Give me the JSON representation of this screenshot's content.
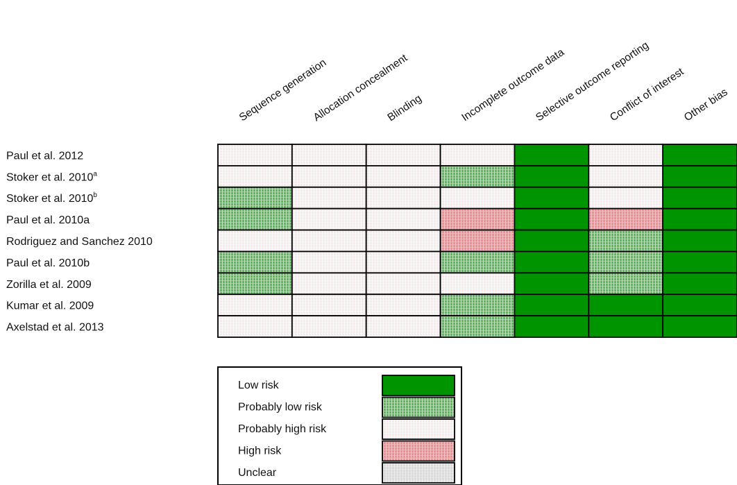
{
  "chart_data": {
    "type": "table",
    "columns": [
      "Sequence generation",
      "Allocation concealment",
      "Blinding",
      "Incomplete outcome data",
      "Selective outcome reporting",
      "Conflict of interest",
      "Other bias"
    ],
    "rows": [
      {
        "study": "Paul et al. 2012",
        "sup": "",
        "ratings": [
          "probably_high",
          "probably_high",
          "probably_high",
          "probably_high",
          "low",
          "probably_high",
          "low"
        ]
      },
      {
        "study": "Stoker et al. 2010",
        "sup": "a",
        "ratings": [
          "probably_high",
          "probably_high",
          "probably_high",
          "probably_low",
          "low",
          "probably_high",
          "low"
        ]
      },
      {
        "study": "Stoker et al. 2010",
        "sup": "b",
        "ratings": [
          "probably_low",
          "probably_high",
          "probably_high",
          "probably_high",
          "low",
          "probably_high",
          "low"
        ]
      },
      {
        "study": "Paul et al. 2010a",
        "sup": "",
        "ratings": [
          "probably_low",
          "probably_high",
          "probably_high",
          "high",
          "low",
          "high",
          "low"
        ]
      },
      {
        "study": "Rodriguez and Sanchez 2010",
        "sup": "",
        "ratings": [
          "probably_high",
          "probably_high",
          "probably_high",
          "high",
          "low",
          "probably_low",
          "low"
        ]
      },
      {
        "study": "Paul et al. 2010b",
        "sup": "",
        "ratings": [
          "probably_low",
          "probably_high",
          "probably_high",
          "probably_low",
          "low",
          "probably_low",
          "low"
        ]
      },
      {
        "study": "Zorilla et al. 2009",
        "sup": "",
        "ratings": [
          "probably_low",
          "probably_high",
          "probably_high",
          "probably_high",
          "low",
          "probably_low",
          "low"
        ]
      },
      {
        "study": "Kumar et al. 2009",
        "sup": "",
        "ratings": [
          "probably_high",
          "probably_high",
          "probably_high",
          "probably_low",
          "low",
          "low",
          "low"
        ]
      },
      {
        "study": "Axelstad et al. 2013",
        "sup": "",
        "ratings": [
          "probably_high",
          "probably_high",
          "probably_high",
          "probably_low",
          "low",
          "low",
          "low"
        ]
      }
    ],
    "legend": [
      {
        "key": "low",
        "label": "Low risk"
      },
      {
        "key": "probably_low",
        "label": "Probably low risk"
      },
      {
        "key": "probably_high",
        "label": "Probably high risk"
      },
      {
        "key": "high",
        "label": "High risk"
      },
      {
        "key": "unclear",
        "label": "Unclear"
      }
    ],
    "colors": {
      "low": "#009400",
      "probably_low": "#5cb85c",
      "probably_high": "#f9e8e8",
      "high": "#ee8f92",
      "unclear": "#d9d9d9"
    },
    "legend_placement": "bottom"
  }
}
